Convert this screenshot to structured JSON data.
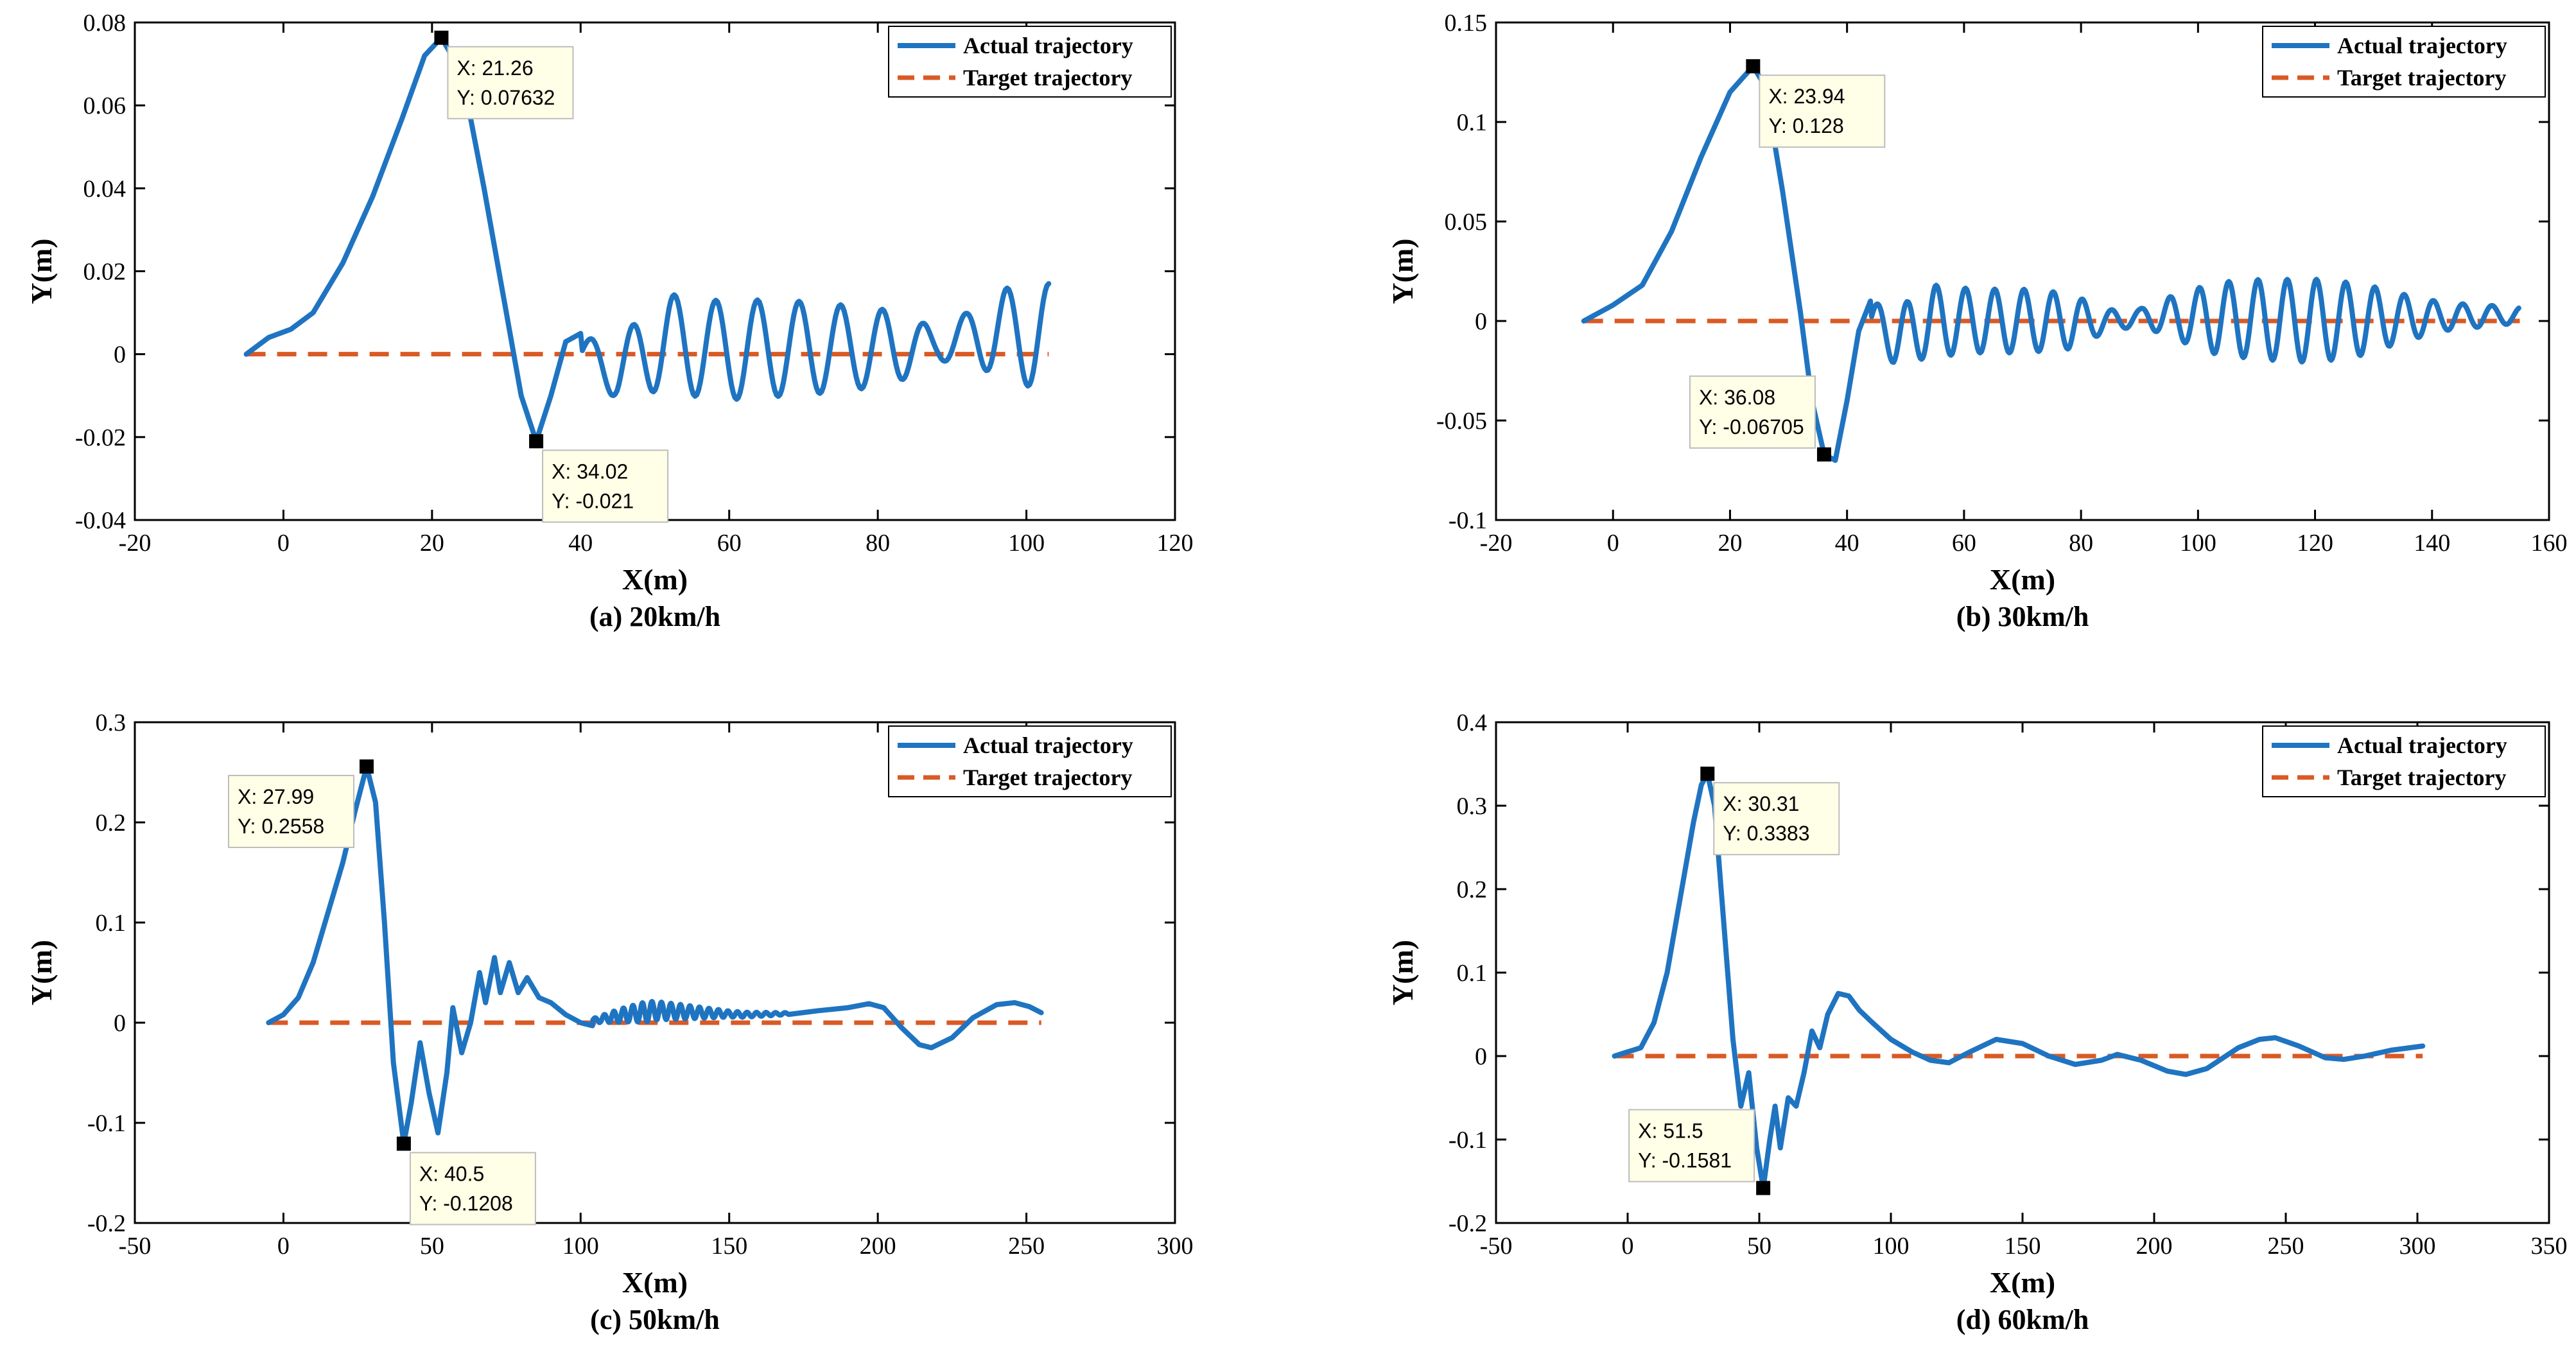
{
  "colors": {
    "actual": "#1f74c1",
    "target": "#d95a24",
    "datatip_bg": "#fffee6",
    "datatip_border": "#bdbdbd"
  },
  "legend": {
    "actual_label": "Actual trajectory",
    "target_label": "Target trajectory",
    "placement": "top-right"
  },
  "chart_data": [
    {
      "id": "a",
      "type": "line",
      "caption": "(a) 20km/h",
      "xlabel": "X(m)",
      "ylabel": "Y(m)",
      "xlim": [
        -20,
        120
      ],
      "ylim": [
        -0.04,
        0.08
      ],
      "xticks": [
        -20,
        0,
        20,
        40,
        60,
        80,
        100,
        120
      ],
      "yticks": [
        -0.04,
        -0.02,
        0,
        0.02,
        0.04,
        0.06,
        0.08
      ],
      "xtick_labels": [
        "-20",
        "0",
        "20",
        "40",
        "60",
        "80",
        "100",
        "120"
      ],
      "ytick_labels": [
        "-0.04",
        "-0.02",
        "0",
        "0.02",
        "0.04",
        "0.06",
        "0.08"
      ],
      "x_range": [
        -5,
        103
      ],
      "target_y": 0,
      "series": [
        {
          "name": "Actual trajectory",
          "points": [
            [
              -5,
              0
            ],
            [
              -2,
              0.004
            ],
            [
              1,
              0.006
            ],
            [
              4,
              0.01
            ],
            [
              8,
              0.022
            ],
            [
              12,
              0.038
            ],
            [
              16,
              0.057
            ],
            [
              19,
              0.072
            ],
            [
              21.26,
              0.07632
            ],
            [
              24,
              0.068
            ],
            [
              27,
              0.04
            ],
            [
              30,
              0.01
            ],
            [
              32,
              -0.01
            ],
            [
              34.02,
              -0.021
            ],
            [
              36,
              -0.01
            ],
            [
              38,
              0.003
            ],
            [
              40,
              0.005
            ]
          ]
        },
        {
          "name": "Target trajectory",
          "points": [
            [
              -5,
              0
            ],
            [
              103,
              0
            ]
          ]
        }
      ],
      "oscillation": {
        "start": 40,
        "end": 103,
        "period": 5.6,
        "points": [
          [
            40,
            0
          ],
          [
            45,
            -0.004
          ],
          [
            50,
            0.002
          ],
          [
            52,
            0.003
          ],
          [
            58,
            0.001
          ],
          [
            70,
            0.0015
          ],
          [
            80,
            0.0015
          ],
          [
            87,
            0.002
          ],
          [
            92,
            0.004
          ],
          [
            96,
            0.005
          ],
          [
            103,
            0.004
          ]
        ],
        "amps": [
          [
            40,
            0.004
          ],
          [
            45,
            0.007
          ],
          [
            50,
            0.011
          ],
          [
            55,
            0.012
          ],
          [
            62,
            0.012
          ],
          [
            72,
            0.011
          ],
          [
            82,
            0.009
          ],
          [
            88,
            0.004
          ],
          [
            92,
            0.006
          ],
          [
            97,
            0.011
          ],
          [
            103,
            0.013
          ]
        ]
      },
      "datatips": [
        {
          "x": 21.26,
          "y": 0.07632,
          "label_x": "X: 21.26",
          "label_y": "Y: 0.07632",
          "side": "below-right"
        },
        {
          "x": 34.02,
          "y": -0.021,
          "label_x": "X: 34.02",
          "label_y": "Y: -0.021",
          "side": "below-right"
        }
      ]
    },
    {
      "id": "b",
      "type": "line",
      "caption": "(b) 30km/h",
      "xlabel": "X(m)",
      "ylabel": "Y(m)",
      "xlim": [
        -20,
        160
      ],
      "ylim": [
        -0.1,
        0.15
      ],
      "xticks": [
        -20,
        0,
        20,
        40,
        60,
        80,
        100,
        120,
        140,
        160
      ],
      "yticks": [
        -0.1,
        -0.05,
        0,
        0.05,
        0.1,
        0.15
      ],
      "xtick_labels": [
        "-20",
        "0",
        "20",
        "40",
        "60",
        "80",
        "100",
        "120",
        "140",
        "160"
      ],
      "ytick_labels": [
        "-0.1",
        "-0.05",
        "0",
        "0.05",
        "0.1",
        "0.15"
      ],
      "x_range": [
        -5,
        155
      ],
      "target_y": 0,
      "series": [
        {
          "name": "Actual trajectory",
          "points": [
            [
              -5,
              0
            ],
            [
              0,
              0.008
            ],
            [
              5,
              0.018
            ],
            [
              10,
              0.045
            ],
            [
              15,
              0.082
            ],
            [
              20,
              0.115
            ],
            [
              23.94,
              0.128
            ],
            [
              26,
              0.118
            ],
            [
              29,
              0.065
            ],
            [
              32,
              0.005
            ],
            [
              34,
              -0.04
            ],
            [
              36.08,
              -0.06705
            ],
            [
              38,
              -0.07
            ],
            [
              40,
              -0.04
            ],
            [
              42,
              -0.005
            ],
            [
              44,
              0.01
            ]
          ]
        },
        {
          "name": "Target trajectory",
          "points": [
            [
              -5,
              0
            ],
            [
              155,
              0
            ]
          ]
        }
      ],
      "oscillation": {
        "start": 44,
        "end": 155,
        "period": 5.0,
        "points": [
          [
            44,
            0
          ],
          [
            48,
            -0.008
          ],
          [
            55,
            0.0
          ],
          [
            70,
            0.0
          ],
          [
            85,
            0.0
          ],
          [
            90,
            0.002
          ],
          [
            95,
            0.002
          ],
          [
            120,
            0.0
          ],
          [
            140,
            0.002
          ],
          [
            155,
            0.003
          ]
        ],
        "amps": [
          [
            44,
            0.01
          ],
          [
            50,
            0.015
          ],
          [
            55,
            0.018
          ],
          [
            62,
            0.016
          ],
          [
            70,
            0.016
          ],
          [
            78,
            0.014
          ],
          [
            84,
            0.006
          ],
          [
            90,
            0.004
          ],
          [
            95,
            0.01
          ],
          [
            103,
            0.018
          ],
          [
            110,
            0.02
          ],
          [
            120,
            0.021
          ],
          [
            128,
            0.018
          ],
          [
            135,
            0.012
          ],
          [
            142,
            0.007
          ],
          [
            155,
            0.004
          ]
        ]
      },
      "datatips": [
        {
          "x": 23.94,
          "y": 0.128,
          "label_x": "X: 23.94",
          "label_y": "Y: 0.128",
          "side": "below-right"
        },
        {
          "x": 36.08,
          "y": -0.06705,
          "label_x": "X: 36.08",
          "label_y": "Y: -0.06705",
          "side": "above-left"
        }
      ]
    },
    {
      "id": "c",
      "type": "line",
      "caption": "(c) 50km/h",
      "xlabel": "X(m)",
      "ylabel": "Y(m)",
      "xlim": [
        -50,
        300
      ],
      "ylim": [
        -0.2,
        0.3
      ],
      "xticks": [
        -50,
        0,
        50,
        100,
        150,
        200,
        250,
        300
      ],
      "yticks": [
        -0.2,
        -0.1,
        0,
        0.1,
        0.2,
        0.3
      ],
      "xtick_labels": [
        "-50",
        "0",
        "50",
        "100",
        "150",
        "200",
        "250",
        "300"
      ],
      "ytick_labels": [
        "-0.2",
        "-0.1",
        "0",
        "0.1",
        "0.2",
        "0.3"
      ],
      "x_range": [
        -5,
        255
      ],
      "target_y": 0,
      "series": [
        {
          "name": "Actual trajectory",
          "points": [
            [
              -5,
              0
            ],
            [
              0,
              0.008
            ],
            [
              5,
              0.025
            ],
            [
              10,
              0.06
            ],
            [
              15,
              0.11
            ],
            [
              20,
              0.16
            ],
            [
              24,
              0.21
            ],
            [
              27.99,
              0.2558
            ],
            [
              31,
              0.22
            ],
            [
              34,
              0.1
            ],
            [
              37,
              -0.04
            ],
            [
              40.5,
              -0.1208
            ],
            [
              43,
              -0.08
            ],
            [
              46,
              -0.02
            ],
            [
              49,
              -0.07
            ],
            [
              52,
              -0.11
            ],
            [
              55,
              -0.05
            ],
            [
              57,
              0.015
            ],
            [
              60,
              -0.03
            ],
            [
              63,
              0.0
            ],
            [
              66,
              0.05
            ],
            [
              68,
              0.02
            ],
            [
              71,
              0.065
            ],
            [
              73,
              0.03
            ],
            [
              76,
              0.06
            ],
            [
              79,
              0.03
            ],
            [
              82,
              0.045
            ],
            [
              86,
              0.025
            ],
            [
              90,
              0.02
            ],
            [
              95,
              0.008
            ],
            [
              100,
              0.0
            ],
            [
              104,
              -0.003
            ]
          ]
        },
        {
          "name": "Target trajectory",
          "points": [
            [
              -5,
              0
            ],
            [
              255,
              0
            ]
          ]
        }
      ],
      "oscillation": {
        "start": 104,
        "end": 170,
        "period": 3.2,
        "points": [
          [
            104,
            0.002
          ],
          [
            115,
            0.008
          ],
          [
            125,
            0.012
          ],
          [
            140,
            0.01
          ],
          [
            155,
            0.008
          ],
          [
            170,
            0.009
          ]
        ],
        "amps": [
          [
            104,
            0.002
          ],
          [
            112,
            0.006
          ],
          [
            122,
            0.01
          ],
          [
            135,
            0.007
          ],
          [
            150,
            0.003
          ],
          [
            160,
            0.002
          ],
          [
            170,
            0.001
          ]
        ]
      },
      "tail": [
        [
          170,
          0.009
        ],
        [
          180,
          0.012
        ],
        [
          190,
          0.015
        ],
        [
          197,
          0.019
        ],
        [
          202,
          0.015
        ],
        [
          208,
          -0.005
        ],
        [
          214,
          -0.022
        ],
        [
          218,
          -0.025
        ],
        [
          225,
          -0.015
        ],
        [
          232,
          0.005
        ],
        [
          240,
          0.018
        ],
        [
          246,
          0.02
        ],
        [
          251,
          0.016
        ],
        [
          255,
          0.01
        ]
      ],
      "datatips": [
        {
          "x": 27.99,
          "y": 0.2558,
          "label_x": "X: 27.99",
          "label_y": "Y: 0.2558",
          "side": "below-left"
        },
        {
          "x": 40.5,
          "y": -0.1208,
          "label_x": "X: 40.5",
          "label_y": "Y: -0.1208",
          "side": "below-right"
        }
      ]
    },
    {
      "id": "d",
      "type": "line",
      "caption": "(d) 60km/h",
      "xlabel": "X(m)",
      "ylabel": "Y(m)",
      "xlim": [
        -50,
        350
      ],
      "ylim": [
        -0.2,
        0.4
      ],
      "xticks": [
        -50,
        0,
        50,
        100,
        150,
        200,
        250,
        300,
        350
      ],
      "yticks": [
        -0.2,
        -0.1,
        0,
        0.1,
        0.2,
        0.3,
        0.4
      ],
      "xtick_labels": [
        "-50",
        "0",
        "50",
        "100",
        "150",
        "200",
        "250",
        "300",
        "350"
      ],
      "ytick_labels": [
        "-0.2",
        "-0.1",
        "0",
        "0.1",
        "0.2",
        "0.3",
        "0.4"
      ],
      "x_range": [
        -5,
        302
      ],
      "target_y": 0,
      "series": [
        {
          "name": "Actual trajectory",
          "points": [
            [
              -5,
              0
            ],
            [
              0,
              0.005
            ],
            [
              5,
              0.01
            ],
            [
              10,
              0.04
            ],
            [
              15,
              0.1
            ],
            [
              20,
              0.19
            ],
            [
              25,
              0.28
            ],
            [
              28,
              0.325
            ],
            [
              30.31,
              0.3383
            ],
            [
              33,
              0.3
            ],
            [
              36,
              0.18
            ],
            [
              40,
              0.02
            ],
            [
              43,
              -0.06
            ],
            [
              46,
              -0.02
            ],
            [
              49,
              -0.11
            ],
            [
              51.5,
              -0.1581
            ],
            [
              54,
              -0.1
            ],
            [
              56,
              -0.06
            ],
            [
              58,
              -0.11
            ],
            [
              61,
              -0.05
            ],
            [
              64,
              -0.06
            ],
            [
              67,
              -0.02
            ],
            [
              70,
              0.03
            ],
            [
              73,
              0.01
            ],
            [
              76,
              0.05
            ],
            [
              80,
              0.075
            ],
            [
              84,
              0.072
            ],
            [
              88,
              0.055
            ],
            [
              93,
              0.04
            ],
            [
              100,
              0.02
            ],
            [
              108,
              0.005
            ],
            [
              115,
              -0.005
            ],
            [
              122,
              -0.008
            ],
            [
              130,
              0.005
            ],
            [
              140,
              0.02
            ],
            [
              150,
              0.015
            ],
            [
              160,
              0.0
            ],
            [
              170,
              -0.01
            ],
            [
              180,
              -0.005
            ],
            [
              186,
              0.002
            ],
            [
              195,
              -0.005
            ],
            [
              205,
              -0.018
            ],
            [
              212,
              -0.022
            ],
            [
              220,
              -0.015
            ],
            [
              232,
              0.01
            ],
            [
              240,
              0.02
            ],
            [
              246,
              0.022
            ],
            [
              255,
              0.012
            ],
            [
              265,
              -0.002
            ],
            [
              272,
              -0.004
            ],
            [
              280,
              0.0
            ],
            [
              290,
              0.007
            ],
            [
              302,
              0.012
            ]
          ]
        },
        {
          "name": "Target trajectory",
          "points": [
            [
              -5,
              0
            ],
            [
              302,
              0
            ]
          ]
        }
      ],
      "datatips": [
        {
          "x": 30.31,
          "y": 0.3383,
          "label_x": "X: 30.31",
          "label_y": "Y: 0.3383",
          "side": "below-right"
        },
        {
          "x": 51.5,
          "y": -0.1581,
          "label_x": "X: 51.5",
          "label_y": "Y: -0.1581",
          "side": "above-left"
        }
      ]
    }
  ]
}
